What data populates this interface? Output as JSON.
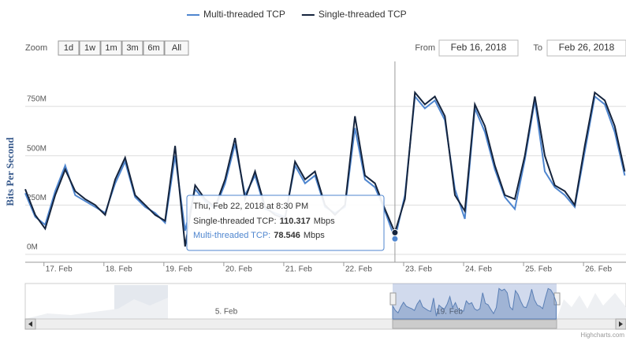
{
  "chart_data": {
    "type": "line",
    "y_axis_title": "Bits Per Second",
    "range_selector": {
      "zoom_label": "Zoom",
      "buttons": [
        "1d",
        "1w",
        "1m",
        "3m",
        "6m",
        "All"
      ],
      "from_label": "From",
      "from": "Feb 16, 2018",
      "to_label": "To",
      "to": "Feb 26, 2018"
    },
    "x": [
      "2018-02-16T16:30",
      "2018-02-16T20:30",
      "2018-02-17T00:30",
      "2018-02-17T04:30",
      "2018-02-17T08:30",
      "2018-02-17T12:30",
      "2018-02-17T16:30",
      "2018-02-17T20:30",
      "2018-02-18T00:30",
      "2018-02-18T04:30",
      "2018-02-18T08:30",
      "2018-02-18T12:30",
      "2018-02-18T16:30",
      "2018-02-18T20:30",
      "2018-02-19T00:30",
      "2018-02-19T04:30",
      "2018-02-19T08:30",
      "2018-02-19T12:30",
      "2018-02-19T16:30",
      "2018-02-19T20:30",
      "2018-02-20T00:30",
      "2018-02-20T04:30",
      "2018-02-20T08:30",
      "2018-02-20T12:30",
      "2018-02-20T16:30",
      "2018-02-20T20:30",
      "2018-02-21T00:30",
      "2018-02-21T04:30",
      "2018-02-21T08:30",
      "2018-02-21T12:30",
      "2018-02-21T16:30",
      "2018-02-21T20:30",
      "2018-02-22T00:30",
      "2018-02-22T04:30",
      "2018-02-22T08:30",
      "2018-02-22T12:30",
      "2018-02-22T16:30",
      "2018-02-22T20:30",
      "2018-02-23T00:30",
      "2018-02-23T04:30",
      "2018-02-23T08:30",
      "2018-02-23T12:30",
      "2018-02-23T16:30",
      "2018-02-23T20:30",
      "2018-02-24T00:30",
      "2018-02-24T04:30",
      "2018-02-24T08:30",
      "2018-02-24T12:30",
      "2018-02-24T16:30",
      "2018-02-24T20:30",
      "2018-02-25T00:30",
      "2018-02-25T04:30",
      "2018-02-25T08:30",
      "2018-02-25T12:30",
      "2018-02-25T16:30",
      "2018-02-25T20:30",
      "2018-02-26T00:30",
      "2018-02-26T04:30",
      "2018-02-26T08:30",
      "2018-02-26T12:30",
      "2018-02-26T16:30"
    ],
    "xlim": [
      "2018-02-16T16:30",
      "2018-02-26T17:00"
    ],
    "xticks": [
      {
        "value": "2018-02-17T00:00",
        "label": "17. Feb"
      },
      {
        "value": "2018-02-18T00:00",
        "label": "18. Feb"
      },
      {
        "value": "2018-02-19T00:00",
        "label": "19. Feb"
      },
      {
        "value": "2018-02-20T00:00",
        "label": "20. Feb"
      },
      {
        "value": "2018-02-21T00:00",
        "label": "21. Feb"
      },
      {
        "value": "2018-02-22T00:00",
        "label": "22. Feb"
      },
      {
        "value": "2018-02-23T00:00",
        "label": "23. Feb"
      },
      {
        "value": "2018-02-24T00:00",
        "label": "24. Feb"
      },
      {
        "value": "2018-02-25T00:00",
        "label": "25. Feb"
      },
      {
        "value": "2018-02-26T00:00",
        "label": "26. Feb"
      }
    ],
    "ylim": [
      -40000000,
      870000000
    ],
    "yticks": [
      {
        "value": 0,
        "label": "0M"
      },
      {
        "value": 250000000,
        "label": "250M"
      },
      {
        "value": 500000000,
        "label": "500M"
      },
      {
        "value": 750000000,
        "label": "750M"
      }
    ],
    "grid": true,
    "legend_position": "top",
    "series": [
      {
        "name": "Multi-threaded TCP",
        "color": "#4f86cf",
        "values": [
          310000000,
          190000000,
          150000000,
          320000000,
          450000000,
          300000000,
          270000000,
          240000000,
          210000000,
          360000000,
          470000000,
          290000000,
          240000000,
          210000000,
          160000000,
          500000000,
          120000000,
          330000000,
          270000000,
          230000000,
          360000000,
          560000000,
          300000000,
          400000000,
          230000000,
          210000000,
          190000000,
          450000000,
          360000000,
          400000000,
          240000000,
          210000000,
          240000000,
          640000000,
          380000000,
          340000000,
          220000000,
          78546000,
          300000000,
          800000000,
          740000000,
          780000000,
          680000000,
          330000000,
          180000000,
          740000000,
          620000000,
          430000000,
          290000000,
          230000000,
          480000000,
          780000000,
          420000000,
          340000000,
          300000000,
          240000000,
          520000000,
          800000000,
          760000000,
          620000000,
          400000000
        ]
      },
      {
        "name": "Single-threaded TCP",
        "color": "#15243d",
        "values": [
          330000000,
          200000000,
          130000000,
          300000000,
          430000000,
          320000000,
          280000000,
          250000000,
          200000000,
          380000000,
          490000000,
          300000000,
          250000000,
          200000000,
          170000000,
          550000000,
          40000000,
          350000000,
          280000000,
          240000000,
          380000000,
          590000000,
          280000000,
          420000000,
          240000000,
          200000000,
          180000000,
          470000000,
          380000000,
          420000000,
          250000000,
          200000000,
          250000000,
          700000000,
          400000000,
          360000000,
          230000000,
          110317000,
          280000000,
          820000000,
          760000000,
          800000000,
          700000000,
          300000000,
          220000000,
          760000000,
          650000000,
          450000000,
          300000000,
          280000000,
          500000000,
          800000000,
          500000000,
          350000000,
          320000000,
          250000000,
          550000000,
          820000000,
          780000000,
          650000000,
          420000000
        ]
      }
    ],
    "tooltip": {
      "index": 37,
      "date": "Thu, Feb 22, 2018 at 8:30 PM",
      "items": [
        {
          "label": "Single-threaded TCP:",
          "value": 110.317,
          "unit": "Mbps"
        },
        {
          "label": "Multi-threaded TCP:",
          "value": 78.546,
          "unit": "Mbps"
        }
      ]
    },
    "navigator": {
      "labels": [
        "5. Feb",
        "19. Feb"
      ]
    },
    "credits": "Highcharts.com"
  }
}
